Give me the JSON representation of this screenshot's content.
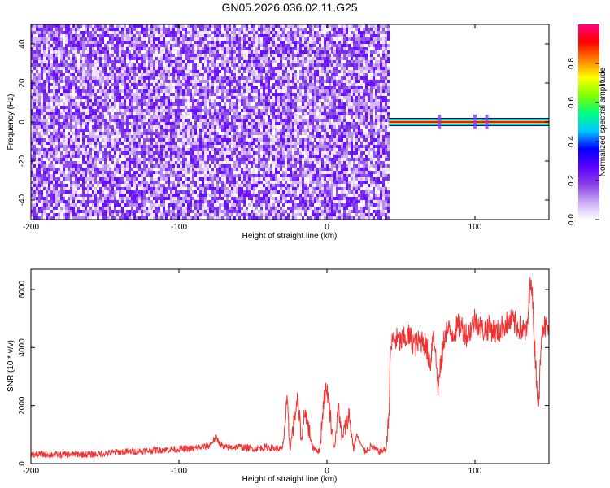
{
  "title": "GN05.2026.036.02.11.G25",
  "chart_data": [
    {
      "type": "heatmap",
      "xlabel": "Height of straight line (km)",
      "ylabel": "Frequency (Hz)",
      "xlim": [
        -200,
        150
      ],
      "ylim": [
        -50,
        50
      ],
      "xticks": [
        -200,
        -100,
        0,
        100
      ],
      "yticks": [
        -40,
        -20,
        0,
        20,
        40
      ],
      "noise_region_x": [
        -200,
        42
      ],
      "signal_band": {
        "x_start": 42,
        "x_end": 150,
        "freq": 0,
        "amplitude": 1.0
      },
      "signal_spikes_x": [
        76,
        100,
        108
      ],
      "colorbar": {
        "label": "Normalized spectral amplitude",
        "range": [
          0,
          1
        ],
        "ticks": [
          0.0,
          0.2,
          0.4,
          0.6,
          0.8
        ],
        "colors": [
          "#ffffff",
          "#c9a8f5",
          "#8a3ee6",
          "#5a00ff",
          "#0000ff",
          "#00c8ff",
          "#00ff80",
          "#80ff00",
          "#ffff00",
          "#ff8000",
          "#ff0000",
          "#ff0080"
        ]
      },
      "grid": false
    },
    {
      "type": "line",
      "xlabel": "Height of straight line (km)",
      "ylabel": "SNR (10 * v/v)",
      "xlim": [
        -200,
        150
      ],
      "ylim": [
        0,
        6700
      ],
      "xticks": [
        -200,
        -100,
        0,
        100
      ],
      "yticks": [
        0,
        2000,
        4000,
        6000
      ],
      "color": "#f03232",
      "grid": false,
      "series": [
        {
          "x": [
            -200,
            -190,
            -180,
            -170,
            -160,
            -150,
            -140,
            -130,
            -120,
            -110,
            -100,
            -90,
            -80,
            -75,
            -70,
            -60,
            -50,
            -40,
            -30,
            -27,
            -25,
            -20,
            -17,
            -15,
            -10,
            -5,
            -2,
            0,
            5,
            8,
            10,
            15,
            18,
            20,
            25,
            30,
            35,
            40,
            42,
            43,
            45,
            50,
            55,
            60,
            65,
            70,
            72,
            75,
            80,
            85,
            90,
            95,
            100,
            105,
            110,
            115,
            120,
            125,
            130,
            135,
            138,
            140,
            143,
            145,
            150
          ],
          "y": [
            300,
            320,
            300,
            330,
            310,
            350,
            400,
            420,
            450,
            480,
            500,
            520,
            600,
            900,
            550,
            580,
            520,
            560,
            500,
            2100,
            500,
            2200,
            800,
            1900,
            600,
            400,
            2300,
            2600,
            500,
            2000,
            800,
            1700,
            500,
            1000,
            400,
            600,
            400,
            500,
            1900,
            4000,
            4300,
            4200,
            4400,
            4100,
            4300,
            3500,
            4700,
            2600,
            4600,
            4500,
            4800,
            4400,
            5000,
            4600,
            4700,
            4500,
            4800,
            4900,
            4700,
            4500,
            6600,
            4300,
            1800,
            4800,
            4600
          ]
        }
      ]
    }
  ]
}
